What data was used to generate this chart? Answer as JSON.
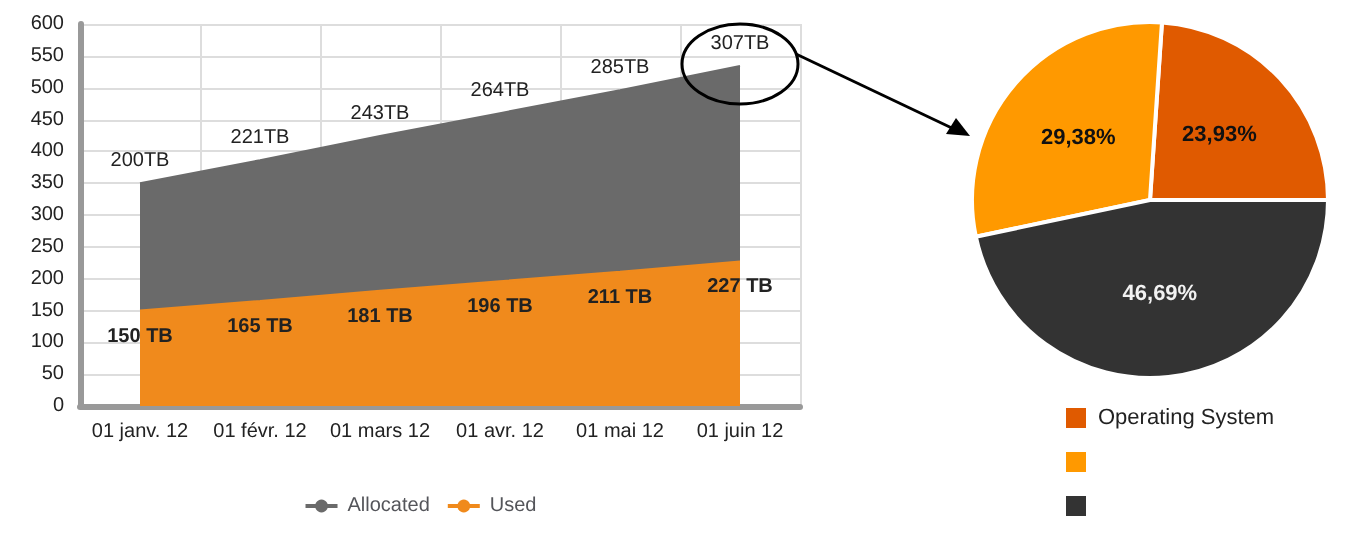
{
  "chart_data": [
    {
      "type": "area",
      "categories": [
        "01 janv. 12",
        "01 févr. 12",
        "01 mars 12",
        "01 avr. 12",
        "01 mai 12",
        "01 juin 12"
      ],
      "stacked": true,
      "ylim": [
        0,
        600
      ],
      "yticks": [
        0,
        50,
        100,
        150,
        200,
        250,
        300,
        350,
        400,
        450,
        500,
        550,
        600
      ],
      "grid": true,
      "legend": "bottom",
      "series": [
        {
          "name": "Used",
          "color": "#f08a1c",
          "values": [
            150,
            165,
            181,
            196,
            211,
            227
          ],
          "value_labels": [
            "150 TB",
            "165 TB",
            "181 TB",
            "196 TB",
            "211 TB",
            "227 TB"
          ]
        },
        {
          "name": "Allocated",
          "color": "#6a6a6a",
          "values": [
            200,
            221,
            243,
            264,
            285,
            307
          ],
          "value_labels": [
            "200TB",
            "221TB",
            "243TB",
            "264TB",
            "285TB",
            "307TB"
          ]
        }
      ]
    },
    {
      "type": "pie",
      "categories": [
        "Operating System",
        null,
        null
      ],
      "values": [
        23.93,
        29.38,
        46.69
      ],
      "colors": [
        "#e05a00",
        "#ff9900",
        "#333333"
      ],
      "value_labels": [
        "23,93%",
        "29,38%",
        "46,69%"
      ],
      "legend": "bottom"
    }
  ]
}
